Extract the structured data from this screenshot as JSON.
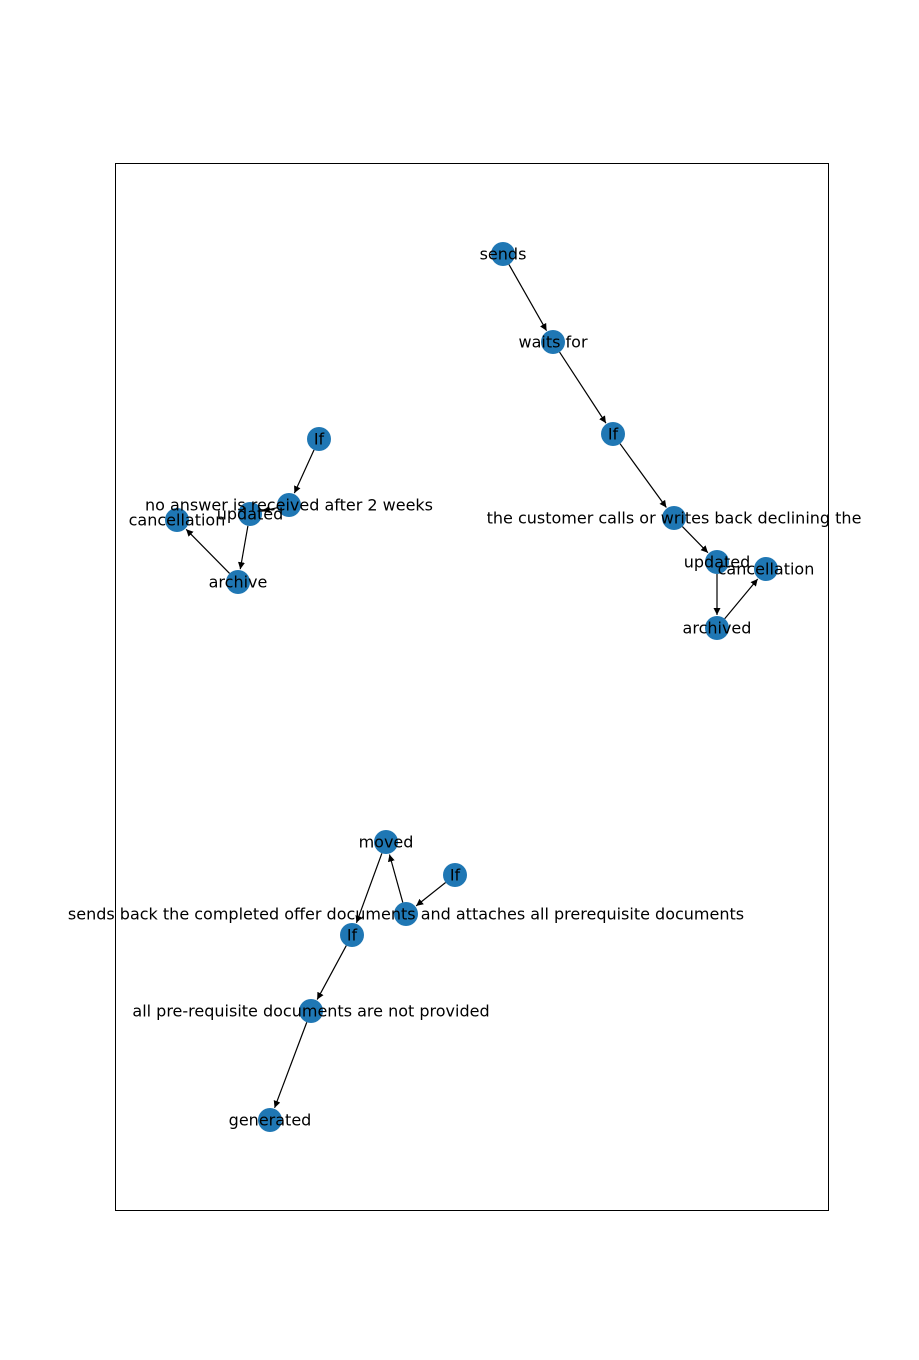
{
  "graph": {
    "node_color": "#1f77b4",
    "edge_color": "#000000",
    "nodes": [
      {
        "id": "sends",
        "label": "sends"
      },
      {
        "id": "waits_for",
        "label": "waits for"
      },
      {
        "id": "if_right",
        "label": "If"
      },
      {
        "id": "declining",
        "label": "the customer calls or writes back declining the"
      },
      {
        "id": "updated_right",
        "label": "updated"
      },
      {
        "id": "cancellation_right",
        "label": "cancellation"
      },
      {
        "id": "archived",
        "label": "archived"
      },
      {
        "id": "if_left",
        "label": "If"
      },
      {
        "id": "no_answer",
        "label": "no answer is received after 2 weeks"
      },
      {
        "id": "updated_left",
        "label": "updated"
      },
      {
        "id": "cancellation_left",
        "label": "cancellation"
      },
      {
        "id": "archive",
        "label": "archive"
      },
      {
        "id": "moved",
        "label": "moved"
      },
      {
        "id": "if_bottom_right",
        "label": "If"
      },
      {
        "id": "sends_back",
        "label": "sends back the completed offer documents and attaches all prerequisite documents"
      },
      {
        "id": "if_bottom",
        "label": "If"
      },
      {
        "id": "not_provided",
        "label": "all pre-requisite documents are not provided"
      },
      {
        "id": "generated",
        "label": "generated"
      }
    ],
    "edges": [
      {
        "from": "sends",
        "to": "waits_for"
      },
      {
        "from": "waits_for",
        "to": "if_right"
      },
      {
        "from": "if_right",
        "to": "declining"
      },
      {
        "from": "declining",
        "to": "updated_right"
      },
      {
        "from": "updated_right",
        "to": "archived"
      },
      {
        "from": "archived",
        "to": "cancellation_right"
      },
      {
        "from": "if_left",
        "to": "no_answer"
      },
      {
        "from": "no_answer",
        "to": "updated_left"
      },
      {
        "from": "updated_left",
        "to": "archive"
      },
      {
        "from": "archive",
        "to": "cancellation_left"
      },
      {
        "from": "if_bottom_right",
        "to": "sends_back"
      },
      {
        "from": "sends_back",
        "to": "moved"
      },
      {
        "from": "moved",
        "to": "if_bottom"
      },
      {
        "from": "if_bottom",
        "to": "not_provided"
      },
      {
        "from": "not_provided",
        "to": "generated"
      }
    ]
  }
}
